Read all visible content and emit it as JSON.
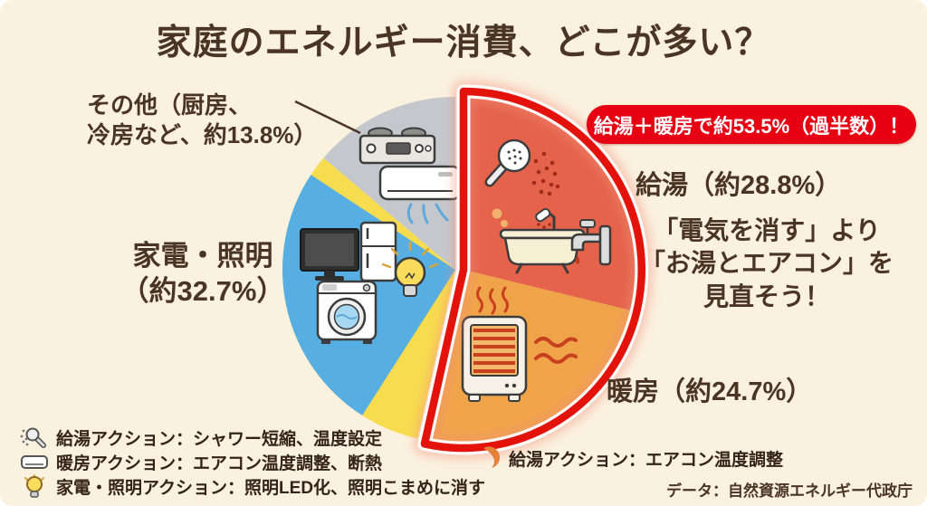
{
  "title": "家庭のエネルギー消費、どこが多い？",
  "chart_data": {
    "type": "pie",
    "title": "家庭のエネルギー消費、どこが多い？",
    "unit": "percent",
    "direction": "clockwise",
    "start_angle_deg": 0,
    "legend_position": "around",
    "slices": [
      {
        "label": "給湯",
        "value": 28.8,
        "display_label": "給湯（約28.8%）",
        "color": "#E4634A",
        "highlighted": true
      },
      {
        "label": "暖房",
        "value": 24.7,
        "display_label": "暖房（約24.7%）",
        "color": "#F0A44A",
        "highlighted": true
      },
      {
        "label": "家電・照明",
        "value": 32.7,
        "display_label": "家電・照明（約32.7%）",
        "color": "#56AEE2",
        "accent_color": "#F8DC4F",
        "highlighted": false
      },
      {
        "label": "その他",
        "value": 13.8,
        "display_label": "その他（厨房、冷房など、約13.8%）",
        "color": "#C4C8CD",
        "highlighted": false
      }
    ],
    "highlight": {
      "note": "給湯＋暖房で約53.5%（過半数）！",
      "total_value": 53.5,
      "outline_color": "#E3120B"
    }
  },
  "labels": {
    "other_line1": "その他（厨房、",
    "other_line2": "冷房など、約13.8%）",
    "appliance_line1": "家電・照明",
    "appliance_line2": "（約32.7%）",
    "hot_water": "給湯（約28.8%）",
    "heating": "暖房（約24.7%）"
  },
  "message": {
    "line1": "「電気を消す」より",
    "line2": "「お湯とエアコン」を",
    "line3": "見直そう！"
  },
  "actions": [
    {
      "icon": "shower-icon",
      "text": "給湯アクション：シャワー短縮、温度設定"
    },
    {
      "icon": "aircon-icon",
      "text": "暖房アクション：エアコン温度調整、断熱"
    },
    {
      "icon": "bulb-icon",
      "text": "家電・照明アクション：照明LED化、照明こまめに消す"
    }
  ],
  "action_right": {
    "icon": "pie-slice-icon",
    "text": "給湯アクション：エアコン温度調整"
  },
  "source": "データ：自然資源エネルギー代政庁",
  "colors": {
    "background": "#FBF1DF",
    "text": "#4A3423",
    "badge_bg": "#E60012",
    "badge_text": "#FFFFFF"
  }
}
